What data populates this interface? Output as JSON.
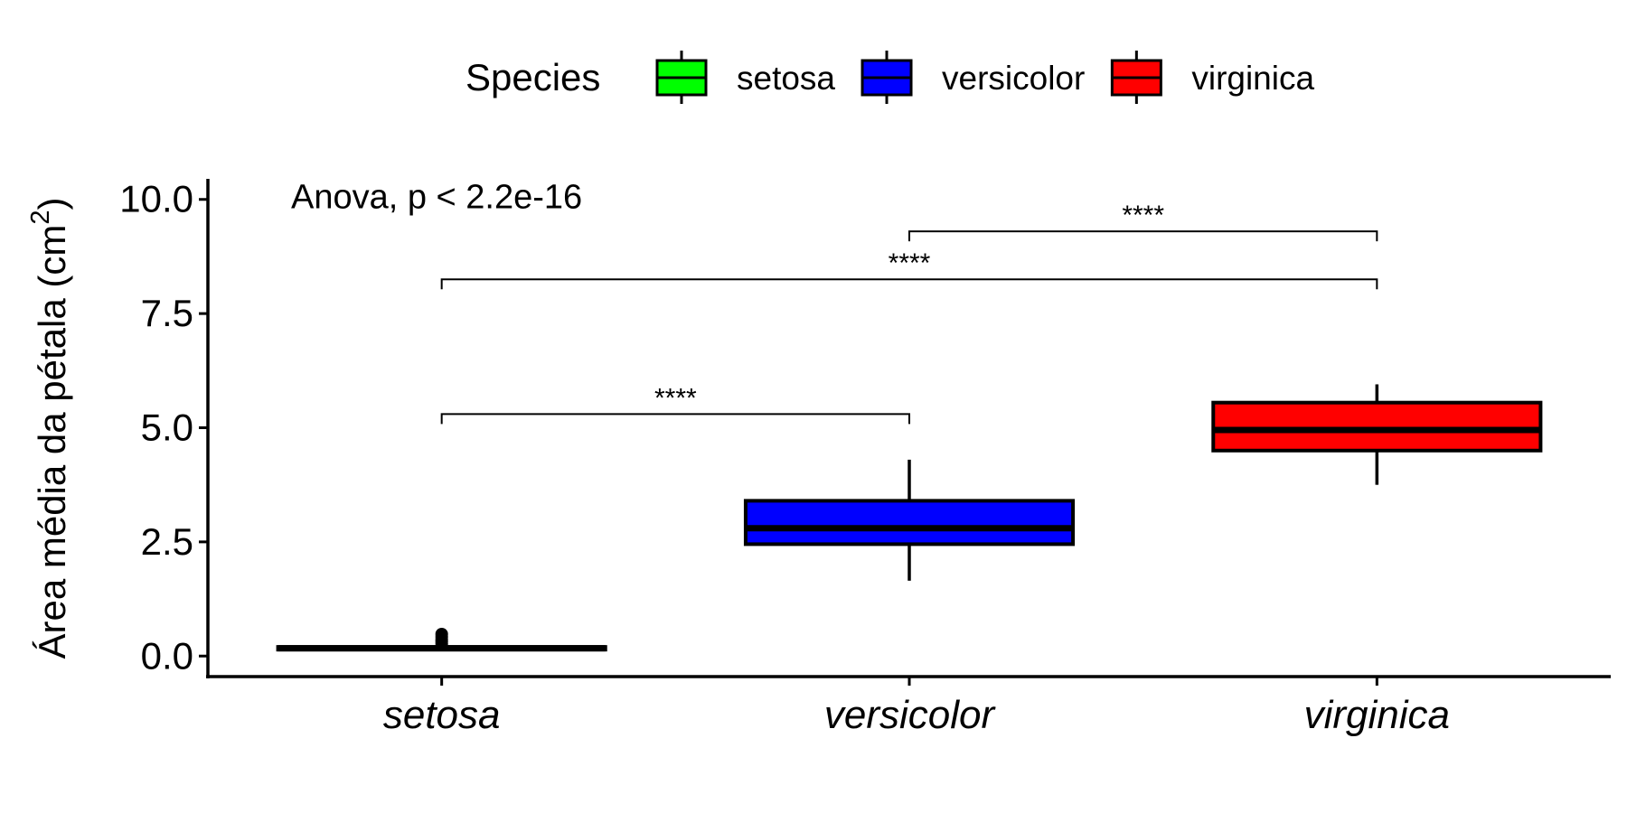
{
  "chart_data": {
    "type": "boxplot",
    "title": "",
    "xlabel": "",
    "ylabel_main": "Área média da pétala (cm",
    "ylabel_sup": "2",
    "ylabel_close": ")",
    "ylim": [
      -0.45,
      10.45
    ],
    "yticks": [
      0.0,
      2.5,
      5.0,
      7.5,
      10.0
    ],
    "ytick_labels": [
      "0.0",
      "2.5",
      "5.0",
      "7.5",
      "10.0"
    ],
    "categories": [
      "setosa",
      "versicolor",
      "virginica"
    ],
    "grid": false,
    "legend": {
      "title": "Species",
      "position": "top",
      "items": [
        {
          "label": "setosa",
          "color": "#00ff00"
        },
        {
          "label": "versicolor",
          "color": "#0000ff"
        },
        {
          "label": "virginica",
          "color": "#ff0000"
        }
      ]
    },
    "boxes": [
      {
        "category": "setosa",
        "color": "#00ff00",
        "min": 0.13,
        "q1": 0.14,
        "median": 0.17,
        "q3": 0.2,
        "max": 0.22,
        "outliers": [
          0.27,
          0.32,
          0.36,
          0.42,
          0.48
        ]
      },
      {
        "category": "versicolor",
        "color": "#0000ff",
        "min": 1.65,
        "q1": 2.45,
        "median": 2.8,
        "q3": 3.4,
        "max": 4.3,
        "outliers": []
      },
      {
        "category": "virginica",
        "color": "#ff0000",
        "min": 3.75,
        "q1": 4.5,
        "median": 4.95,
        "q3": 5.55,
        "max": 5.95,
        "outliers": []
      }
    ],
    "annotations": {
      "test_label": "Anova, p < 2.2e-16",
      "test_label_y": 10.1,
      "brackets": [
        {
          "from": "setosa",
          "to": "versicolor",
          "y": 5.3,
          "label": "****"
        },
        {
          "from": "setosa",
          "to": "virginica",
          "y": 8.25,
          "label": "****"
        },
        {
          "from": "versicolor",
          "to": "virginica",
          "y": 9.3,
          "label": "****"
        }
      ]
    }
  }
}
